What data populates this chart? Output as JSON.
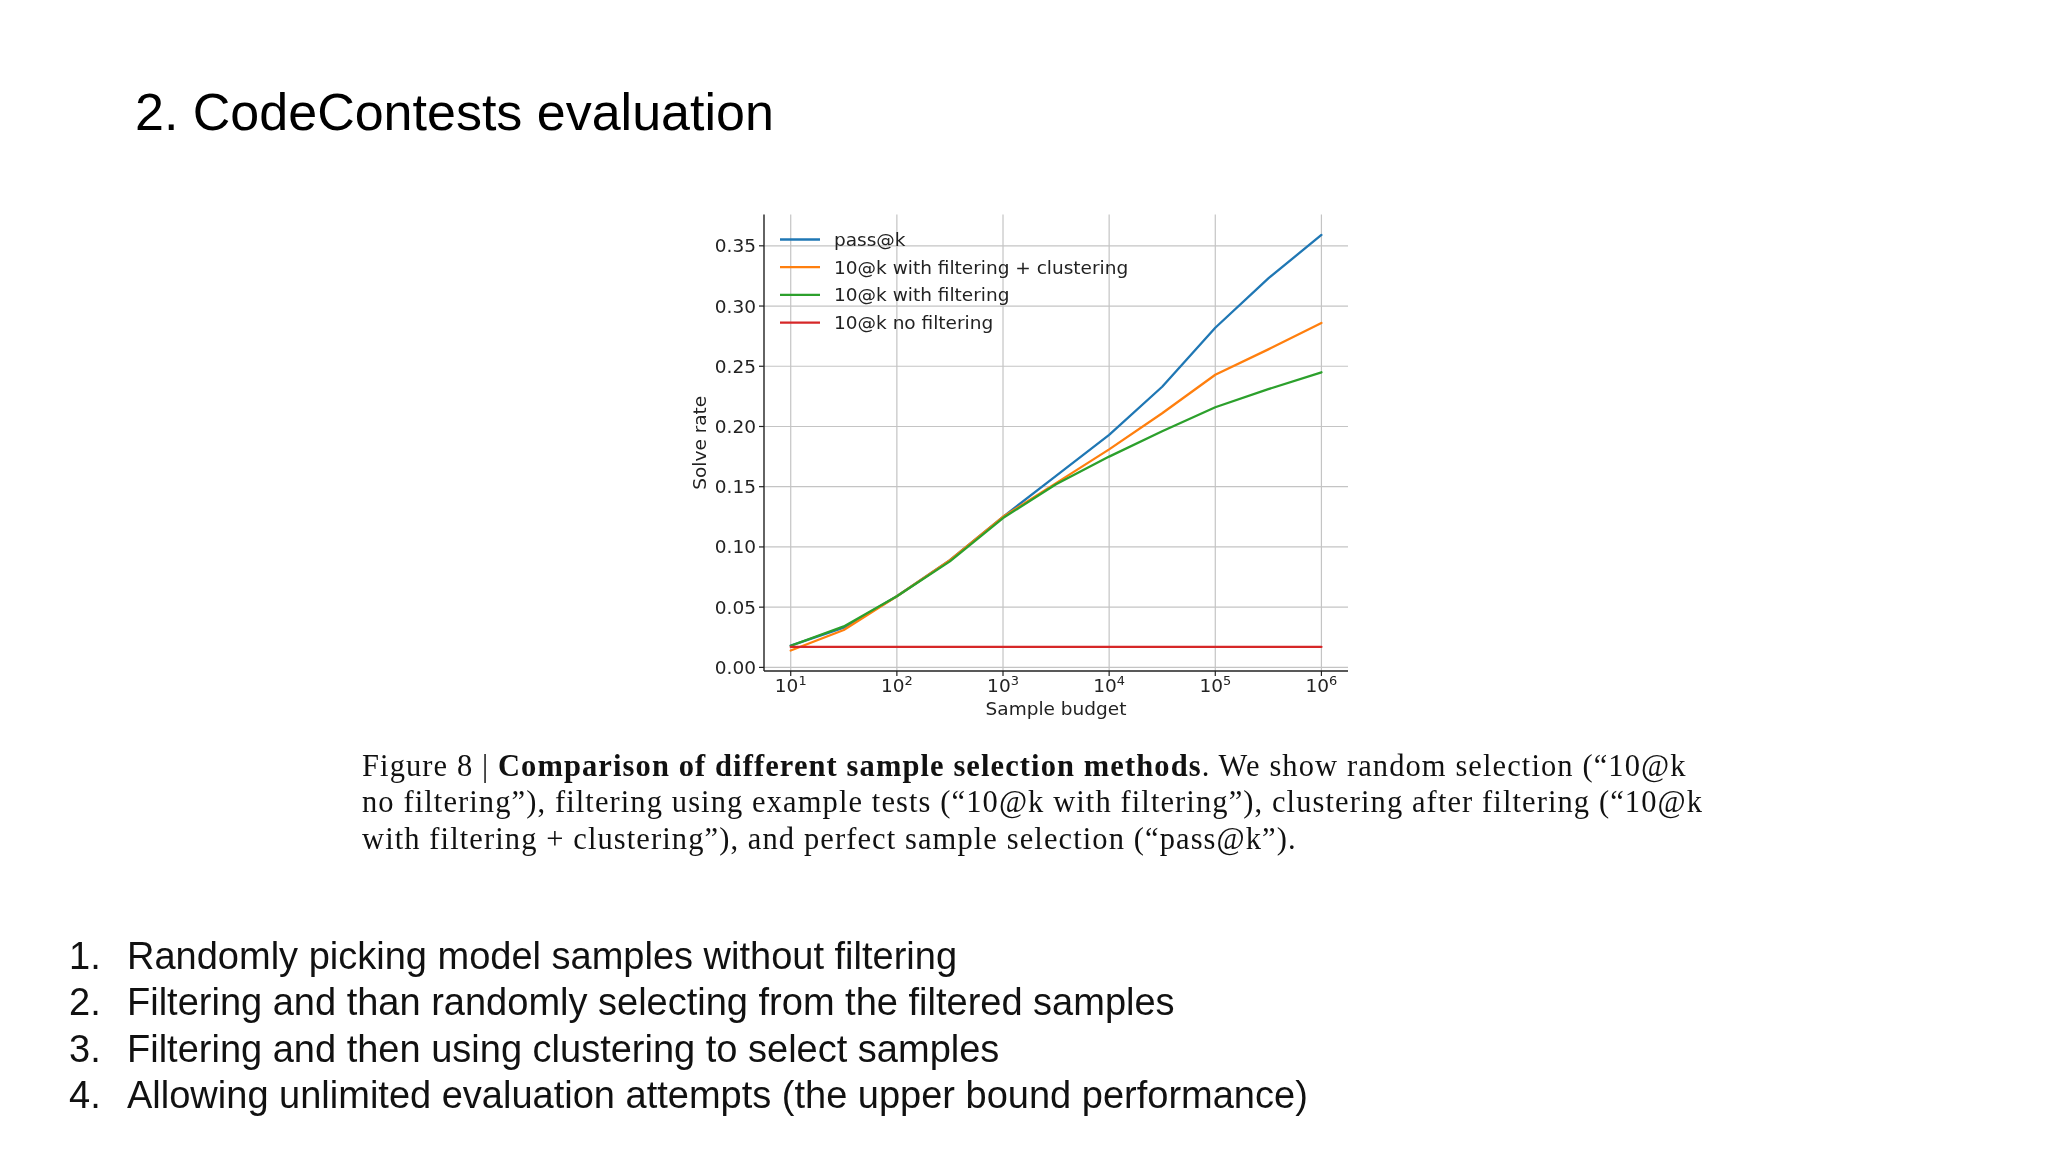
{
  "chart_data": {
    "type": "line",
    "title": "2. CodeContests evaluation",
    "xlabel": "Sample budget",
    "ylabel": "Solve rate",
    "log": "x",
    "x": [
      10,
      31.6,
      100,
      316,
      1000,
      3160,
      10000,
      31600,
      100000,
      316000,
      1000000
    ],
    "xlim": [
      5.6,
      1780000
    ],
    "xticks": [
      {
        "value": 10,
        "label": "10$^{1}$"
      },
      {
        "value": 100,
        "label": "10$^{2}$"
      },
      {
        "value": 1000,
        "label": "10$^{3}$"
      },
      {
        "value": 10000,
        "label": "10$^{4}$"
      },
      {
        "value": 100000,
        "label": "10$^{5}$"
      },
      {
        "value": 1000000,
        "label": "10$^{6}$"
      }
    ],
    "ylim": [
      -0.003,
      0.376
    ],
    "yticks": [
      {
        "value": 0,
        "label": "0.00"
      },
      {
        "value": 0.05,
        "label": "0.05"
      },
      {
        "value": 0.1,
        "label": "0.10"
      },
      {
        "value": 0.15,
        "label": "0.15"
      },
      {
        "value": 0.2,
        "label": "0.20"
      },
      {
        "value": 0.25,
        "label": "0.25"
      },
      {
        "value": 0.3,
        "label": "0.30"
      },
      {
        "value": 0.35,
        "label": "0.35"
      }
    ],
    "grid": true,
    "legend": "top left",
    "series": [
      {
        "name": "pass@k",
        "color": "#1f77b4",
        "values": [
          0.018,
          0.033,
          0.059,
          0.089,
          0.125,
          0.159,
          0.193,
          0.233,
          0.282,
          0.323,
          0.359
        ]
      },
      {
        "name": "10@k with filtering + clustering",
        "color": "#ff7f0e",
        "values": [
          0.014,
          0.031,
          0.059,
          0.089,
          0.125,
          0.153,
          0.181,
          0.211,
          0.243,
          0.264,
          0.286
        ]
      },
      {
        "name": "10@k with filtering",
        "color": "#2ca02c",
        "values": [
          0.018,
          0.034,
          0.059,
          0.088,
          0.124,
          0.152,
          0.175,
          0.196,
          0.216,
          0.231,
          0.245
        ]
      },
      {
        "name": "10@k no filtering",
        "color": "#d62728",
        "values": [
          0.017,
          0.017,
          0.017,
          0.017,
          0.017,
          0.017,
          0.017,
          0.017,
          0.017,
          0.017,
          0.017
        ]
      }
    ],
    "annotations": [
      "Figure 8 |",
      "Comparison of different sample selection methods",
      ". We show random selection (“10@k",
      "no filtering”), filtering using example tests (“10@k with filtering”), clustering after filtering (“10@k",
      "with filtering + clustering”), and perfect sample selection (“pass@k”).",
      "1. Randomly picking model samples without filtering",
      "2. Filtering and than randomly selecting from the filtered samples",
      "3. Filtering and then using clustering to select samples",
      "4. Allowing unlimited evaluation attempts (the upper bound performance)"
    ]
  }
}
